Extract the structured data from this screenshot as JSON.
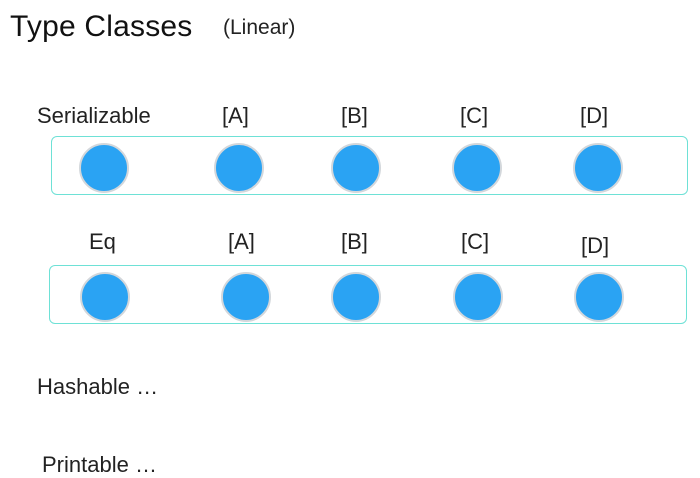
{
  "title": "Type Classes",
  "subtitle": "(Linear)",
  "rows": [
    {
      "class_name": "Serializable",
      "headers": [
        "[A]",
        "[B]",
        "[C]",
        "[D]"
      ]
    },
    {
      "class_name": "Eq",
      "headers": [
        "[A]",
        "[B]",
        "[C]",
        "[D]"
      ]
    }
  ],
  "more": [
    "Hashable …",
    "Printable …"
  ],
  "colors": {
    "box_border": "#6ee1d6",
    "dot_fill": "#2aa3f3",
    "dot_border": "#d3d7db"
  }
}
